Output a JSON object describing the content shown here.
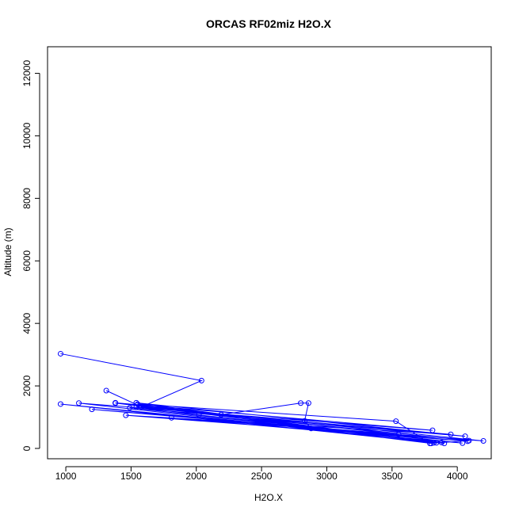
{
  "chart_data": {
    "type": "line",
    "title": "ORCAS RF02miz H2O.X",
    "xlabel": "H2O.X",
    "ylabel": "Altitude (m)",
    "xlim": [
      860,
      4260
    ],
    "ylim": [
      -330,
      12850
    ],
    "x_ticks": [
      1000,
      1500,
      2000,
      2500,
      3000,
      3500,
      4000
    ],
    "y_ticks": [
      0,
      2000,
      4000,
      6000,
      8000,
      10000,
      12000
    ],
    "grid": false,
    "legend": "none",
    "series": [
      {
        "color": "#0000ff",
        "points": [
          [
            960,
            3030
          ],
          [
            2040,
            2170
          ],
          [
            1580,
            1330
          ],
          [
            1310,
            1850
          ],
          [
            1580,
            1330
          ],
          [
            2190,
            1080
          ],
          [
            2800,
            1450
          ],
          [
            2860,
            1450
          ],
          [
            2830,
            880
          ],
          [
            2880,
            640
          ],
          [
            960,
            1420
          ],
          [
            3820,
            180
          ],
          [
            1100,
            1450
          ],
          [
            3810,
            580
          ],
          [
            1380,
            1460
          ],
          [
            3840,
            180
          ],
          [
            1540,
            1460
          ],
          [
            4060,
            390
          ],
          [
            1490,
            1300
          ],
          [
            3880,
            190
          ],
          [
            1380,
            1450
          ],
          [
            3550,
            450
          ],
          [
            1200,
            1250
          ],
          [
            4080,
            230
          ],
          [
            1460,
            1060
          ],
          [
            3950,
            450
          ],
          [
            1540,
            1320
          ],
          [
            3800,
            160
          ],
          [
            2020,
            1070
          ],
          [
            4040,
            170
          ],
          [
            1810,
            980
          ],
          [
            4200,
            240
          ],
          [
            1380,
            1450
          ],
          [
            3900,
            160
          ],
          [
            1550,
            1420
          ],
          [
            3530,
            870
          ],
          [
            3790,
            160
          ],
          [
            4090,
            250
          ],
          [
            1580,
            1330
          ]
        ]
      }
    ]
  }
}
